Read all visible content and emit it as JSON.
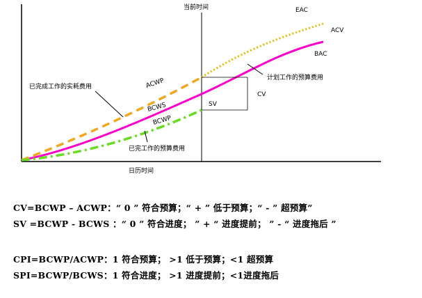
{
  "chart": {
    "labels": {
      "current_time": "当前时间",
      "eac": "EAC",
      "acv": "ACV",
      "bac": "BAC",
      "acwp": "ACWP",
      "bcws": "BCWS",
      "bcwp": "BCWP",
      "acwp_desc": "已完成工作的实耗费用",
      "bcws_desc": "计划工作的预算费用",
      "bcwp_desc": "已完工作的预算费用",
      "sv": "SV",
      "cv": "CV",
      "x_axis": "日历时间"
    },
    "colors": {
      "acwp": "#f0a820",
      "bcws": "#ff00cc",
      "bcwp": "#66dd22",
      "eac_dotted": "#e8b800",
      "axis": "#000000"
    }
  },
  "formulas": {
    "line1": "CV=BCWP – ACWP：“ 0 ” 符合预算；“ + ” 低于预算；“ - ” 超预算”",
    "line2": "SV =BCWP - BCWS ：“ 0 ” 符合进度； ” + “ 进度提前； ” - “ 进度拖后 ”",
    "line3": "CPI=BCWP/ACWP：1 符合预算； >1 低于预算；<1 超预算",
    "line4": "SPI=BCWP/BCWS：1 符合进度；  >1 进度提前；<1进度拖后"
  }
}
